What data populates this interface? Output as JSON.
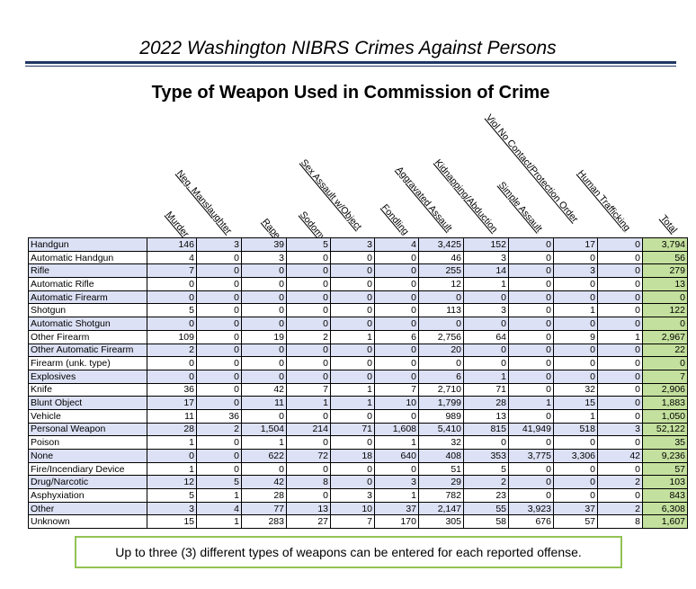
{
  "report_title": "2022 Washington NIBRS Crimes Against Persons",
  "sub_title": "Type of Weapon Used in Commission of Crime",
  "table": {
    "columns": [
      "Murder",
      "Neg. Manslaughter",
      "Rape",
      "Sodomy",
      "Sex Assault w/Object",
      "Fondling",
      "Aggravated Assault",
      "Kidnapping/Abduction",
      "Simple Assault",
      "Viol No Contact/Protection Order",
      "Human Trafficking",
      "Total"
    ],
    "rows": [
      {
        "label": "Handgun",
        "values": [
          "146",
          "3",
          "39",
          "5",
          "3",
          "4",
          "3,425",
          "152",
          "0",
          "17",
          "0",
          "3,794"
        ]
      },
      {
        "label": "Automatic Handgun",
        "values": [
          "4",
          "0",
          "3",
          "0",
          "0",
          "0",
          "46",
          "3",
          "0",
          "0",
          "0",
          "56"
        ]
      },
      {
        "label": "Rifle",
        "values": [
          "7",
          "0",
          "0",
          "0",
          "0",
          "0",
          "255",
          "14",
          "0",
          "3",
          "0",
          "279"
        ]
      },
      {
        "label": "Automatic Rifle",
        "values": [
          "0",
          "0",
          "0",
          "0",
          "0",
          "0",
          "12",
          "1",
          "0",
          "0",
          "0",
          "13"
        ]
      },
      {
        "label": "Automatic Firearm",
        "values": [
          "0",
          "0",
          "0",
          "0",
          "0",
          "0",
          "0",
          "0",
          "0",
          "0",
          "0",
          "0"
        ]
      },
      {
        "label": "Shotgun",
        "values": [
          "5",
          "0",
          "0",
          "0",
          "0",
          "0",
          "113",
          "3",
          "0",
          "1",
          "0",
          "122"
        ]
      },
      {
        "label": "Automatic Shotgun",
        "values": [
          "0",
          "0",
          "0",
          "0",
          "0",
          "0",
          "0",
          "0",
          "0",
          "0",
          "0",
          "0"
        ]
      },
      {
        "label": "Other Firearm",
        "values": [
          "109",
          "0",
          "19",
          "2",
          "1",
          "6",
          "2,756",
          "64",
          "0",
          "9",
          "1",
          "2,967"
        ]
      },
      {
        "label": "Other Automatic Firearm",
        "values": [
          "2",
          "0",
          "0",
          "0",
          "0",
          "0",
          "20",
          "0",
          "0",
          "0",
          "0",
          "22"
        ]
      },
      {
        "label": "Firearm (unk. type)",
        "values": [
          "0",
          "0",
          "0",
          "0",
          "0",
          "0",
          "0",
          "0",
          "0",
          "0",
          "0",
          "0"
        ]
      },
      {
        "label": "Explosives",
        "values": [
          "0",
          "0",
          "0",
          "0",
          "0",
          "0",
          "6",
          "1",
          "0",
          "0",
          "0",
          "7"
        ]
      },
      {
        "label": "Knife",
        "values": [
          "36",
          "0",
          "42",
          "7",
          "1",
          "7",
          "2,710",
          "71",
          "0",
          "32",
          "0",
          "2,906"
        ]
      },
      {
        "label": "Blunt Object",
        "values": [
          "17",
          "0",
          "11",
          "1",
          "1",
          "10",
          "1,799",
          "28",
          "1",
          "15",
          "0",
          "1,883"
        ]
      },
      {
        "label": "Vehicle",
        "values": [
          "11",
          "36",
          "0",
          "0",
          "0",
          "0",
          "989",
          "13",
          "0",
          "1",
          "0",
          "1,050"
        ]
      },
      {
        "label": "Personal Weapon",
        "values": [
          "28",
          "2",
          "1,504",
          "214",
          "71",
          "1,608",
          "5,410",
          "815",
          "41,949",
          "518",
          "3",
          "52,122"
        ]
      },
      {
        "label": "Poison",
        "values": [
          "1",
          "0",
          "1",
          "0",
          "0",
          "1",
          "32",
          "0",
          "0",
          "0",
          "0",
          "35"
        ]
      },
      {
        "label": "None",
        "values": [
          "0",
          "0",
          "622",
          "72",
          "18",
          "640",
          "408",
          "353",
          "3,775",
          "3,306",
          "42",
          "9,236"
        ]
      },
      {
        "label": "Fire/Incendiary Device",
        "values": [
          "1",
          "0",
          "0",
          "0",
          "0",
          "0",
          "51",
          "5",
          "0",
          "0",
          "0",
          "57"
        ]
      },
      {
        "label": "Drug/Narcotic",
        "values": [
          "12",
          "5",
          "42",
          "8",
          "0",
          "3",
          "29",
          "2",
          "0",
          "0",
          "2",
          "103"
        ]
      },
      {
        "label": "Asphyxiation",
        "values": [
          "5",
          "1",
          "28",
          "0",
          "3",
          "1",
          "782",
          "23",
          "0",
          "0",
          "0",
          "843"
        ]
      },
      {
        "label": "Other",
        "values": [
          "3",
          "4",
          "77",
          "13",
          "10",
          "37",
          "2,147",
          "55",
          "3,923",
          "37",
          "2",
          "6,308"
        ]
      },
      {
        "label": "Unknown",
        "values": [
          "15",
          "1",
          "283",
          "27",
          "7",
          "170",
          "305",
          "58",
          "676",
          "57",
          "8",
          "1,607"
        ]
      }
    ]
  },
  "note": "Up to three (3) different types of weapons can be entered for each reported offense."
}
